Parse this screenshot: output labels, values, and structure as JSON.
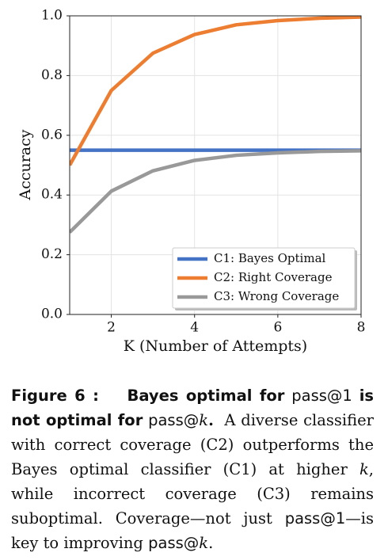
{
  "chart_data": {
    "type": "line",
    "xlabel": "K (Number of Attempts)",
    "ylabel": "Accuracy",
    "x": [
      1,
      2,
      3,
      4,
      5,
      6,
      7,
      8
    ],
    "series": [
      {
        "name": "C1: Bayes Optimal",
        "color": "#4472c4",
        "values": [
          0.55,
          0.55,
          0.55,
          0.55,
          0.55,
          0.55,
          0.55,
          0.55
        ]
      },
      {
        "name": "C2: Right Coverage",
        "color": "#ed7d31",
        "values": [
          0.5,
          0.75,
          0.875,
          0.9375,
          0.97,
          0.984,
          0.992,
          0.996
        ]
      },
      {
        "name": "C3: Wrong Coverage",
        "color": "#999999",
        "values": [
          0.275,
          0.413,
          0.481,
          0.516,
          0.533,
          0.541,
          0.546,
          0.548
        ]
      }
    ],
    "xlim": [
      1,
      8
    ],
    "xticks": [
      2,
      4,
      6,
      8
    ],
    "ylim": [
      0,
      1
    ],
    "yticks": [
      {
        "value": 0,
        "label": "0.0"
      },
      0.2,
      0.4,
      0.6,
      0.8,
      {
        "value": 1,
        "label": "1.0"
      }
    ],
    "grid": true,
    "legend": "lower right"
  },
  "caption": [
    "Figure 6 :",
    "Bayes optimal for",
    "pass@1",
    "is not optimal for",
    "pass@",
    "k",
    ".",
    "A diverse classifier with correct coverage (C2) outperforms the Bayes optimal classifier (C1) at higher",
    "k",
    ", while incorrect coverage (C3) remains suboptimal. Coverage—not just",
    "pass@1",
    "—is key to improving",
    "pass@",
    "k",
    "."
  ]
}
